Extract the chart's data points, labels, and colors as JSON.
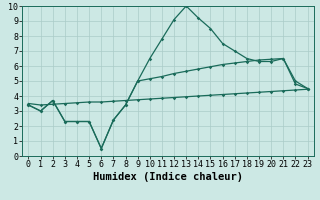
{
  "xlabel": "Humidex (Indice chaleur)",
  "bg_color": "#cce8e4",
  "line_color": "#1a6b5a",
  "grid_color": "#aaccc8",
  "x_values": [
    0,
    1,
    2,
    3,
    4,
    5,
    6,
    7,
    8,
    9,
    10,
    11,
    12,
    13,
    14,
    15,
    16,
    17,
    18,
    19,
    20,
    21,
    22,
    23
  ],
  "line1": [
    3.4,
    3.0,
    3.7,
    2.3,
    2.3,
    2.3,
    0.5,
    2.4,
    3.4,
    5.0,
    6.5,
    7.8,
    9.1,
    10.0,
    9.2,
    8.5,
    7.5,
    7.0,
    6.5,
    6.3,
    6.3,
    6.5,
    5.0,
    4.5
  ],
  "line2": [
    3.4,
    3.0,
    3.7,
    2.3,
    2.3,
    2.3,
    0.5,
    2.4,
    3.4,
    5.0,
    5.15,
    5.3,
    5.5,
    5.65,
    5.8,
    5.95,
    6.1,
    6.2,
    6.3,
    6.4,
    6.45,
    6.5,
    4.8,
    4.5
  ],
  "line3": [
    3.5,
    3.4,
    3.45,
    3.5,
    3.55,
    3.6,
    3.6,
    3.65,
    3.7,
    3.75,
    3.8,
    3.85,
    3.9,
    3.95,
    4.0,
    4.05,
    4.1,
    4.15,
    4.2,
    4.25,
    4.3,
    4.35,
    4.4,
    4.45
  ],
  "ylim": [
    0,
    10
  ],
  "xlim": [
    -0.5,
    23.5
  ],
  "tick_fontsize": 6,
  "label_fontsize": 7.5
}
